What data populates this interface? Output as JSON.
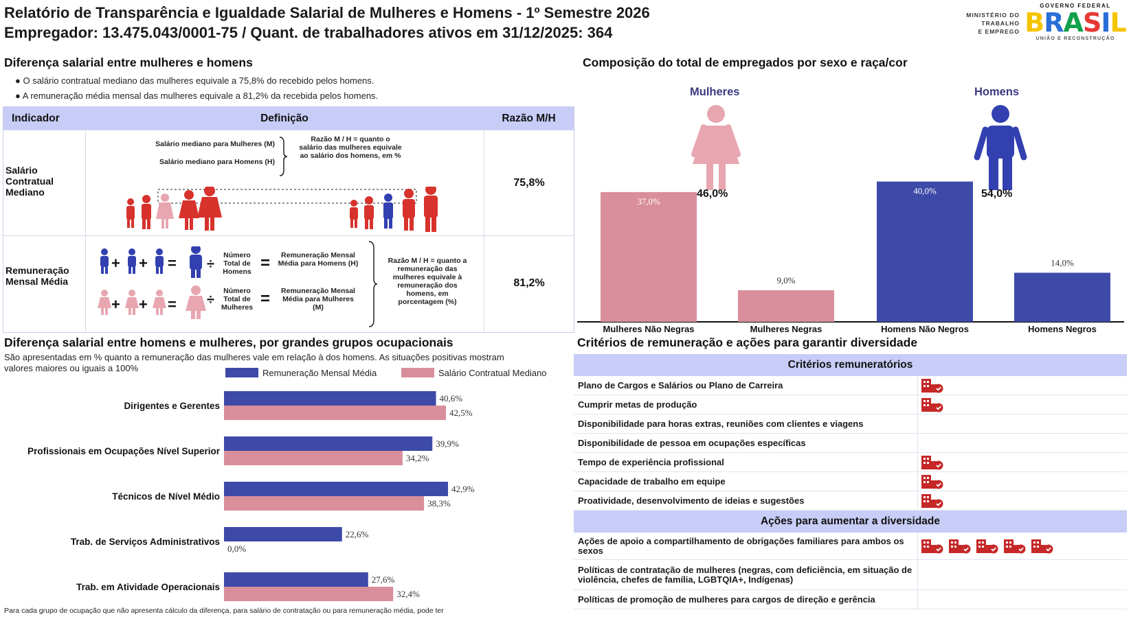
{
  "header": {
    "title_line1": "Relatório de Transparência e Igualdade Salarial de Mulheres e Homens - 1º Semestre 2026",
    "title_line2": "Empregador: 13.475.043/0001-75 / Quant. de trabalhadores ativos em 31/12/2025: 364",
    "ministry": [
      "MINISTÉRIO DO",
      "TRABALHO",
      "E EMPREGO"
    ],
    "gov_top": "GOVERNO FEDERAL",
    "gov_word": "BRASIL",
    "gov_sub": "UNIÃO E RECONSTRUÇÃO"
  },
  "salary_gap": {
    "title": "Diferença salarial entre mulheres e homens",
    "bullets": [
      "O salário contratual mediano das mulheres equivale a 75,8% do recebido pelos homens.",
      "A remuneração média mensal das mulheres equivale a 81,2% da recebida pelos homens."
    ],
    "table": {
      "headers": [
        "Indicador",
        "Definição",
        "Razão M/H"
      ],
      "rows": [
        {
          "label": "Salário Contratual Mediano",
          "ratio": "75,8%",
          "def_women": "Salário mediano para Mulheres (M)",
          "def_men": "Salário mediano para Homens (H)",
          "def_note": "Razão M / H = quanto o salário das mulheres equivale ao salário dos homens, em %"
        },
        {
          "label": "Remuneração Mensal Média",
          "ratio": "81,2%",
          "total_men": "Número Total de Homens",
          "avg_men": "Remuneração Mensal Média para Homens (H)",
          "total_women": "Número Total de Mulheres",
          "avg_women": "Remuneração Mensal Média para Mulheres (M)",
          "def_note": "Razão M / H = quanto a remuneração das mulheres equivale à remuneração dos homens, em porcentagem (%)"
        }
      ]
    }
  },
  "composition": {
    "title": "Composição do total de empregados por sexo e raça/cor",
    "women_label": "Mulheres",
    "men_label": "Homens",
    "women_pct": "46,0%",
    "men_pct": "54,0%"
  },
  "occupation": {
    "title": "Diferença salarial entre homens e mulheres, por grandes grupos ocupacionais",
    "subtitle": "São apresentadas em % quanto a remuneração das mulheres vale em relação à dos homens. As situações positivas mostram valores maiores ou iguais a 100%",
    "footnote": "Para cada grupo de ocupação que não apresenta cálculo da diferença, para salário de contratação ou para remuneração média, pode ter"
  },
  "criteria": {
    "title": "Critérios de remuneração e ações para garantir diversidade",
    "criteria_header": "Critérios remuneratórios",
    "criteria_items": [
      {
        "label": "Plano de Cargos e Salários ou Plano de Carreira",
        "icons": 1
      },
      {
        "label": "Cumprir metas de produção",
        "icons": 1
      },
      {
        "label": "Disponibilidade para horas extras, reuniões com clientes e viagens",
        "icons": 0
      },
      {
        "label": "Disponibilidade de pessoa em ocupações específicas",
        "icons": 0
      },
      {
        "label": "Tempo de experiência profissional",
        "icons": 1
      },
      {
        "label": "Capacidade de trabalho em equipe",
        "icons": 1
      },
      {
        "label": "Proatividade, desenvolvimento de ideias e sugestões",
        "icons": 1
      }
    ],
    "actions_header": "Ações para aumentar a diversidade",
    "action_items": [
      {
        "label": "Ações de apoio a compartilhamento de obrigações familiares para ambos os sexos",
        "icons": 5
      },
      {
        "label": "Políticas de contratação de mulheres (negras, com deficiência, em situação de violência, chefes de família, LGBTQIA+, Indígenas)",
        "icons": 0
      },
      {
        "label": "Políticas de promoção de mulheres para cargos de direção e gerência",
        "icons": 0
      }
    ],
    "icon_name": "building-check-icon"
  },
  "chart_data": [
    {
      "type": "bar",
      "categories": [
        "Mulheres Não Negras",
        "Mulheres Negras",
        "Homens Não Negros",
        "Homens Negros"
      ],
      "values": [
        37.0,
        9.0,
        40.0,
        14.0
      ],
      "value_labels": [
        "37,0%",
        "9,0%",
        "40,0%",
        "14,0%"
      ],
      "colors": [
        "#d98e9b",
        "#d98e9b",
        "#3d4aa8",
        "#3d4aa8"
      ],
      "ylim": [
        0,
        45
      ],
      "grid": false
    },
    {
      "type": "bar",
      "orientation": "horizontal",
      "categories": [
        "Dirigentes e Gerentes",
        "Profissionais em Ocupações Nível Superior",
        "Técnicos de Nível Médio",
        "Trab. de Serviços Administrativos",
        "Trab. em Atividade Operacionais"
      ],
      "series": [
        {
          "name": "Remuneração Mensal Média",
          "values": [
            40.6,
            39.9,
            42.9,
            22.6,
            27.6
          ],
          "labels": [
            "40,6%",
            "39,9%",
            "42,9%",
            "22,6%",
            "27,6%"
          ],
          "color": "#3d4aa8"
        },
        {
          "name": "Salário Contratual Mediano",
          "values": [
            42.5,
            34.2,
            38.3,
            0.0,
            32.4
          ],
          "labels": [
            "42,5%",
            "34,2%",
            "38,3%",
            "0,0%",
            "32,4%"
          ],
          "color": "#d98e9b"
        }
      ],
      "xlim": [
        0,
        50
      ],
      "legend": "top",
      "grid": false
    }
  ]
}
